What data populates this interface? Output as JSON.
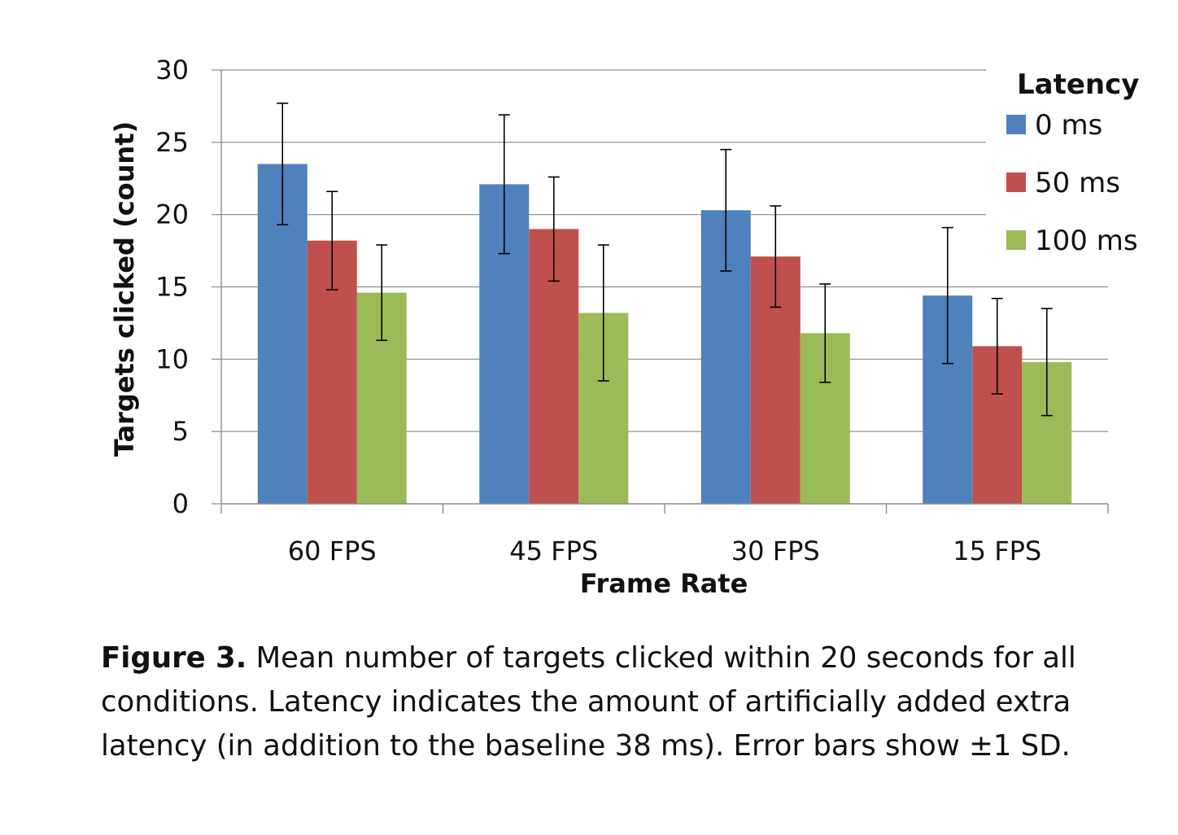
{
  "chart_data": {
    "type": "bar",
    "title": "",
    "xlabel": "Frame Rate",
    "ylabel": "Targets clicked  (count)",
    "ylim": [
      0,
      30
    ],
    "yticks": [
      "0",
      "5",
      "10",
      "15",
      "20",
      "25",
      "30"
    ],
    "grid": true,
    "legend_title": "Latency",
    "legend_position": "top-right",
    "categories": [
      "60 FPS",
      "45 FPS",
      "30 FPS",
      "15 FPS"
    ],
    "series": [
      {
        "name": "0 ms",
        "color": "#4f81bd",
        "values": [
          23.5,
          22.1,
          20.3,
          14.4
        ],
        "sd": [
          4.2,
          4.8,
          4.2,
          4.7
        ]
      },
      {
        "name": "50 ms",
        "color": "#c0504d",
        "values": [
          18.2,
          19.0,
          17.1,
          10.9
        ],
        "sd": [
          3.4,
          3.6,
          3.5,
          3.3
        ]
      },
      {
        "name": "100 ms",
        "color": "#9bbb59",
        "values": [
          14.6,
          13.2,
          11.8,
          9.8
        ],
        "sd": [
          3.3,
          4.7,
          3.4,
          3.7
        ]
      }
    ]
  },
  "caption": {
    "label": "Figure 3.",
    "text": " Mean number of targets clicked within 20 seconds for all conditions. Latency indicates the amount of artificially added extra latency (in addition to the baseline 38 ms). Error bars show ±1 SD."
  }
}
